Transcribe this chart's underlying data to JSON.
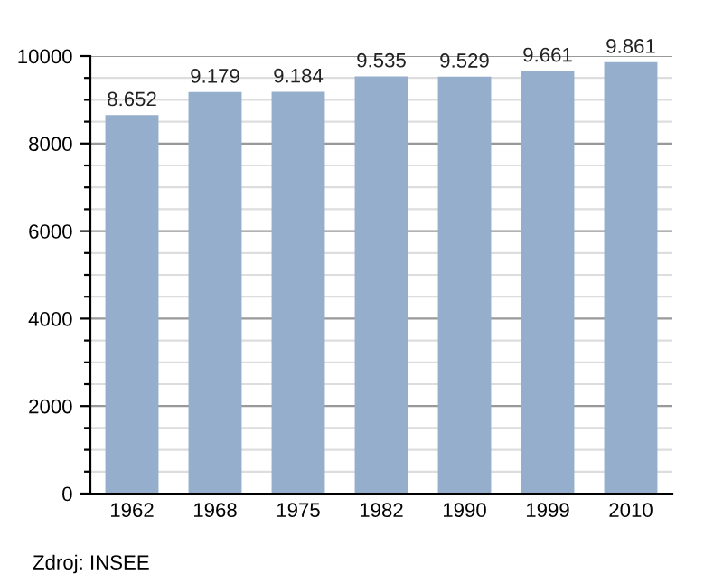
{
  "chart_data": {
    "type": "bar",
    "categories": [
      "1962",
      "1968",
      "1975",
      "1982",
      "1990",
      "1999",
      "2010"
    ],
    "values": [
      8652,
      9179,
      9184,
      9535,
      9529,
      9661,
      9861
    ],
    "value_labels": [
      "8.652",
      "9.179",
      "9.184",
      "9.535",
      "9.529",
      "9.661",
      "9.861"
    ],
    "color": "#94aecb",
    "ylim": [
      0,
      10000
    ],
    "yticks": [
      0,
      {
        "value": 500,
        "label": null
      },
      {
        "value": 1000,
        "label": null
      },
      {
        "value": 1500,
        "label": null
      },
      2000,
      {
        "value": 2500,
        "label": null
      },
      {
        "value": 3000,
        "label": null
      },
      {
        "value": 3500,
        "label": null
      },
      4000,
      {
        "value": 4500,
        "label": null
      },
      {
        "value": 5000,
        "label": null
      },
      {
        "value": 5500,
        "label": null
      },
      6000,
      {
        "value": 6500,
        "label": null
      },
      {
        "value": 7000,
        "label": null
      },
      {
        "value": 7500,
        "label": null
      },
      8000,
      {
        "value": 8500,
        "label": null
      },
      {
        "value": 9000,
        "label": null
      },
      {
        "value": 9500,
        "label": null
      },
      10000
    ],
    "grid": "y",
    "annotations": [
      "Zdroj: INSEE"
    ]
  }
}
